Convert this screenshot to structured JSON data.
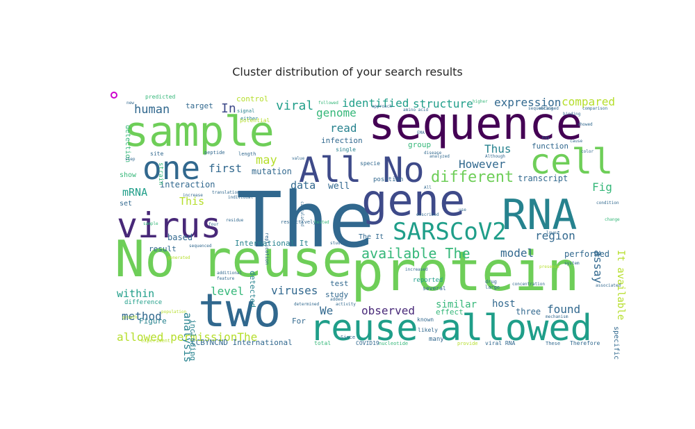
{
  "chart_data": {
    "type": "wordcloud",
    "title": "Cluster distribution of your search results",
    "colors": [
      "#440154",
      "#482878",
      "#3e4a89",
      "#31688e",
      "#26828e",
      "#1f9e89",
      "#35b779",
      "#6ece58",
      "#b5de2b",
      "#fde725"
    ],
    "marker_color": "#cc00cc",
    "words": [
      {
        "text": "The",
        "size": 110,
        "color": "#31688e"
      },
      {
        "text": "sequence",
        "size": 64,
        "color": "#440154"
      },
      {
        "text": "sample",
        "size": 60,
        "color": "#6ece58"
      },
      {
        "text": "protein",
        "size": 78,
        "color": "#6ece58"
      },
      {
        "text": "reuse",
        "size": 72,
        "color": "#6ece58"
      },
      {
        "text": "No",
        "size": 72,
        "color": "#6ece58"
      },
      {
        "text": "two",
        "size": 66,
        "color": "#31688e"
      },
      {
        "text": "gene",
        "size": 62,
        "color": "#3e4a89"
      },
      {
        "text": "RNA",
        "size": 60,
        "color": "#26828e"
      },
      {
        "text": "reuse allowed",
        "size": 52,
        "color": "#1f9e89"
      },
      {
        "text": "virus",
        "size": 50,
        "color": "#482878"
      },
      {
        "text": "All No",
        "size": 50,
        "color": "#3e4a89"
      },
      {
        "text": "cell",
        "size": 50,
        "color": "#6ece58"
      },
      {
        "text": "one",
        "size": 46,
        "color": "#31688e"
      },
      {
        "text": "SARSCoV2",
        "size": 34,
        "color": "#1f9e89"
      },
      {
        "text": "different",
        "size": 22,
        "color": "#6ece58"
      },
      {
        "text": "available The",
        "size": 20,
        "color": "#35b779"
      },
      {
        "text": "identified",
        "size": 16,
        "color": "#1f9e89"
      },
      {
        "text": "structure",
        "size": 16,
        "color": "#1f9e89"
      },
      {
        "text": "expression",
        "size": 16,
        "color": "#31688e"
      },
      {
        "text": "compared",
        "size": 16,
        "color": "#b5de2b"
      },
      {
        "text": "human",
        "size": 17,
        "color": "#31688e"
      },
      {
        "text": "In",
        "size": 18,
        "color": "#3e4a89"
      },
      {
        "text": "viral",
        "size": 18,
        "color": "#1f9e89"
      },
      {
        "text": "genome",
        "size": 16,
        "color": "#35b779"
      },
      {
        "text": "read",
        "size": 16,
        "color": "#26828e"
      },
      {
        "text": "Thus",
        "size": 16,
        "color": "#26828e"
      },
      {
        "text": "However",
        "size": 16,
        "color": "#31688e"
      },
      {
        "text": "first",
        "size": 16,
        "color": "#31688e"
      },
      {
        "text": "may",
        "size": 17,
        "color": "#b5de2b"
      },
      {
        "text": "mutation",
        "size": 12,
        "color": "#31688e"
      },
      {
        "text": "data",
        "size": 15,
        "color": "#31688e"
      },
      {
        "text": "well",
        "size": 13,
        "color": "#31688e"
      },
      {
        "text": "mRNA",
        "size": 15,
        "color": "#1f9e89"
      },
      {
        "text": "This",
        "size": 15,
        "color": "#b5de2b"
      },
      {
        "text": "interaction",
        "size": 12,
        "color": "#31688e"
      },
      {
        "text": "transcript",
        "size": 12,
        "color": "#31688e"
      },
      {
        "text": "Fig",
        "size": 16,
        "color": "#35b779"
      },
      {
        "text": "assay",
        "size": 16,
        "color": "#31688e"
      },
      {
        "text": "region",
        "size": 16,
        "color": "#31688e"
      },
      {
        "text": "model",
        "size": 16,
        "color": "#31688e"
      },
      {
        "text": "performed",
        "size": 12,
        "color": "#31688e"
      },
      {
        "text": "It available",
        "size": 14,
        "color": "#b5de2b"
      },
      {
        "text": "analysis",
        "size": 15,
        "color": "#26828e"
      },
      {
        "text": "within",
        "size": 15,
        "color": "#1f9e89"
      },
      {
        "text": "level",
        "size": 16,
        "color": "#35b779"
      },
      {
        "text": "viruses",
        "size": 16,
        "color": "#31688e"
      },
      {
        "text": "method",
        "size": 16,
        "color": "#31688e"
      },
      {
        "text": "observed",
        "size": 16,
        "color": "#482878"
      },
      {
        "text": "We",
        "size": 16,
        "color": "#31688e"
      },
      {
        "text": "similar",
        "size": 14,
        "color": "#35b779"
      },
      {
        "text": "host",
        "size": 14,
        "color": "#31688e"
      },
      {
        "text": "found",
        "size": 16,
        "color": "#31688e"
      },
      {
        "text": "three",
        "size": 12,
        "color": "#31688e"
      },
      {
        "text": "allowed permissionThe",
        "size": 16,
        "color": "#b5de2b"
      },
      {
        "text": "International It",
        "size": 11,
        "color": "#26828e"
      },
      {
        "text": "CCBYNCND International",
        "size": 11,
        "color": "#31688e"
      },
      {
        "text": "including",
        "size": 11,
        "color": "#26828e"
      },
      {
        "text": "detected",
        "size": 11,
        "color": "#26828e"
      },
      {
        "text": "based",
        "size": 12,
        "color": "#31688e"
      },
      {
        "text": "result",
        "size": 11,
        "color": "#31688e"
      },
      {
        "text": "Figure",
        "size": 11,
        "color": "#26828e"
      },
      {
        "text": "difference",
        "size": 9,
        "color": "#1f9e89"
      },
      {
        "text": "The It",
        "size": 10,
        "color": "#31688e"
      },
      {
        "text": "test",
        "size": 11,
        "color": "#31688e"
      },
      {
        "text": "study",
        "size": 11,
        "color": "#31688e"
      },
      {
        "text": "For",
        "size": 11,
        "color": "#31688e"
      },
      {
        "text": "effect",
        "size": 11,
        "color": "#35b779"
      },
      {
        "text": "specific",
        "size": 10,
        "color": "#31688e"
      },
      {
        "text": "function",
        "size": 11,
        "color": "#31688e"
      },
      {
        "text": "target",
        "size": 11,
        "color": "#31688e"
      },
      {
        "text": "control",
        "size": 11,
        "color": "#b5de2b"
      },
      {
        "text": "group",
        "size": 11,
        "color": "#35b779"
      },
      {
        "text": "infection",
        "size": 11,
        "color": "#31688e"
      },
      {
        "text": "position",
        "size": 9,
        "color": "#31688e"
      },
      {
        "text": "detection",
        "size": 10,
        "color": "#35b779"
      },
      {
        "text": "show",
        "size": 10,
        "color": "#35b779"
      },
      {
        "text": "set",
        "size": 10,
        "color": "#31688e"
      },
      {
        "text": "strain",
        "size": 9,
        "color": "#35b779"
      },
      {
        "text": "specie",
        "size": 8,
        "color": "#31688e"
      },
      {
        "text": "predicted",
        "size": 8,
        "color": "#35b779"
      },
      {
        "text": "signal",
        "size": 7,
        "color": "#26828e"
      },
      {
        "text": "either",
        "size": 7,
        "color": "#26828e"
      },
      {
        "text": "potential",
        "size": 8,
        "color": "#b5de2b"
      },
      {
        "text": "single",
        "size": 8,
        "color": "#26828e"
      },
      {
        "text": "peptide",
        "size": 7,
        "color": "#31688e"
      },
      {
        "text": "length",
        "size": 7,
        "color": "#31688e"
      },
      {
        "text": "replication",
        "size": 7,
        "color": "#31688e"
      },
      {
        "text": "reported",
        "size": 9,
        "color": "#1f9e89"
      },
      {
        "text": "several",
        "size": 8,
        "color": "#31688e"
      },
      {
        "text": "known",
        "size": 8,
        "color": "#31688e"
      },
      {
        "text": "likely",
        "size": 8,
        "color": "#31688e"
      },
      {
        "text": "many",
        "size": 9,
        "color": "#31688e"
      },
      {
        "text": "Therefore",
        "size": 8,
        "color": "#31688e"
      },
      {
        "text": "viral RNA",
        "size": 8,
        "color": "#31688e"
      },
      {
        "text": "total",
        "size": 8,
        "color": "#35b779"
      },
      {
        "text": "COVID19",
        "size": 8,
        "color": "#31688e"
      },
      {
        "text": "nucleotide",
        "size": 7,
        "color": "#35b779"
      },
      {
        "text": "Since",
        "size": 7,
        "color": "#31688e"
      },
      {
        "text": "provide",
        "size": 7,
        "color": "#b5de2b"
      },
      {
        "text": "These",
        "size": 7,
        "color": "#31688e"
      },
      {
        "text": "experiment",
        "size": 7,
        "color": "#b5de2b"
      },
      {
        "text": "drug",
        "size": 7,
        "color": "#31688e"
      },
      {
        "text": "large",
        "size": 7,
        "color": "#31688e"
      },
      {
        "text": "concentration",
        "size": 6,
        "color": "#31688e"
      },
      {
        "text": "mechanism",
        "size": 6,
        "color": "#31688e"
      },
      {
        "text": "system",
        "size": 6,
        "color": "#31688e"
      },
      {
        "text": "higher",
        "size": 6,
        "color": "#35b779"
      },
      {
        "text": "binding",
        "size": 6,
        "color": "#31688e"
      },
      {
        "text": "obtained",
        "size": 6,
        "color": "#31688e"
      },
      {
        "text": "comparison",
        "size": 6,
        "color": "#31688e"
      },
      {
        "text": "condition",
        "size": 6,
        "color": "#31688e"
      },
      {
        "text": "change",
        "size": 6,
        "color": "#35b779"
      },
      {
        "text": "site",
        "size": 8,
        "color": "#31688e"
      },
      {
        "text": "increase",
        "size": 6,
        "color": "#31688e"
      },
      {
        "text": "additional",
        "size": 6,
        "color": "#31688e"
      },
      {
        "text": "feature",
        "size": 6,
        "color": "#31688e"
      },
      {
        "text": "studies",
        "size": 6,
        "color": "#31688e"
      },
      {
        "text": "described",
        "size": 6,
        "color": "#31688e"
      },
      {
        "text": "determined",
        "size": 6,
        "color": "#31688e"
      },
      {
        "text": "activity",
        "size": 6,
        "color": "#31688e"
      },
      {
        "text": "added",
        "size": 6,
        "color": "#31688e"
      },
      {
        "text": "analyzed",
        "size": 6,
        "color": "#31688e"
      },
      {
        "text": "presence",
        "size": 6,
        "color": "#b5de2b"
      },
      {
        "text": "associated",
        "size": 6,
        "color": "#31688e"
      },
      {
        "text": "disease",
        "size": 6,
        "color": "#31688e"
      },
      {
        "text": "Although",
        "size": 6,
        "color": "#31688e"
      },
      {
        "text": "increased",
        "size": 6,
        "color": "#31688e"
      },
      {
        "text": "calculated",
        "size": 6,
        "color": "#31688e"
      },
      {
        "text": "respectively",
        "size": 7,
        "color": "#31688e"
      },
      {
        "text": "residue",
        "size": 6,
        "color": "#31688e"
      },
      {
        "text": "translation",
        "size": 6,
        "color": "#31688e"
      },
      {
        "text": "individual",
        "size": 6,
        "color": "#31688e"
      },
      {
        "text": "approach",
        "size": 6,
        "color": "#31688e"
      },
      {
        "text": "amino acid",
        "size": 6,
        "color": "#31688e"
      },
      {
        "text": "sequenced",
        "size": 6,
        "color": "#31688e"
      },
      {
        "text": "generated",
        "size": 6,
        "color": "#b5de2b"
      },
      {
        "text": "growth",
        "size": 6,
        "color": "#b5de2b"
      },
      {
        "text": "population",
        "size": 6,
        "color": "#b5de2b"
      },
      {
        "text": "step",
        "size": 6,
        "color": "#31688e"
      },
      {
        "text": "value",
        "size": 6,
        "color": "#31688e"
      },
      {
        "text": "lower",
        "size": 6,
        "color": "#31688e"
      },
      {
        "text": "tested",
        "size": 6,
        "color": "#35b779"
      },
      {
        "text": "showed",
        "size": 6,
        "color": "#31688e"
      },
      {
        "text": "sequencing",
        "size": 6,
        "color": "#31688e"
      },
      {
        "text": "followed",
        "size": 6,
        "color": "#35b779"
      },
      {
        "text": "sample",
        "size": 6,
        "color": "#35b779"
      },
      {
        "text": "EMA",
        "size": 6,
        "color": "#31688e"
      },
      {
        "text": "new",
        "size": 6,
        "color": "#31688e"
      },
      {
        "text": "may",
        "size": 6,
        "color": "#31688e"
      },
      {
        "text": "All",
        "size": 6,
        "color": "#31688e"
      },
      {
        "text": "four",
        "size": 6,
        "color": "#31688e"
      },
      {
        "text": "use",
        "size": 6,
        "color": "#31688e"
      },
      {
        "text": "cause",
        "size": 6,
        "color": "#31688e"
      },
      {
        "text": "color",
        "size": 6,
        "color": "#31688e"
      }
    ]
  }
}
